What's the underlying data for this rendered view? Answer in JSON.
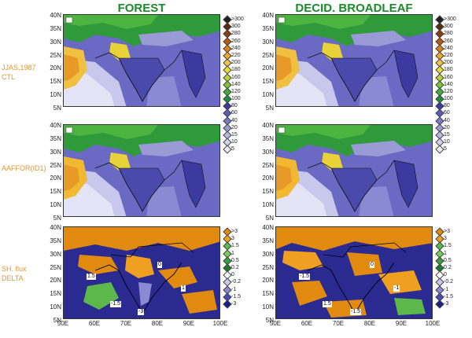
{
  "columns": [
    {
      "title": "FOREST"
    },
    {
      "title": "DECID. BROADLEAF"
    }
  ],
  "rows": [
    {
      "label_lines": [
        "JJAS,1987",
        "CTL"
      ]
    },
    {
      "label_lines": [
        "AAFFOR(ID1)"
      ]
    },
    {
      "label_lines": [
        "SH. flux",
        "DELTA"
      ]
    }
  ],
  "y_ticks": [
    "40N",
    "35N",
    "30N",
    "25N",
    "20N",
    "15N",
    "10N",
    "5N"
  ],
  "x_ticks": [
    "50E",
    "60E",
    "70E",
    "80E",
    "90E",
    "100E"
  ],
  "legend_abs": {
    "labels": [
      ">300",
      "300",
      "280",
      "260",
      "240",
      "220",
      "200",
      "180",
      "160",
      "140",
      "120",
      "100",
      "80",
      "60",
      "40",
      "20",
      "15",
      "10",
      "5"
    ],
    "colors": [
      "#202020",
      "#5a2a10",
      "#8a3d12",
      "#b85a14",
      "#d9821c",
      "#f0a830",
      "#f6c24a",
      "#e8dc3a",
      "#b8d43a",
      "#7cc43c",
      "#3fae3a",
      "#1e8e38",
      "#3a3aa0",
      "#5a5ab8",
      "#7a7ac8",
      "#9a9ad6",
      "#b8b8e2",
      "#d2d2ec",
      "#ececf6"
    ]
  },
  "legend_delta": {
    "labels": [
      ">3",
      "3",
      "1.5",
      "1",
      "0.5",
      "0.2",
      "0",
      "-0.2",
      "-1",
      "-1.5",
      "-3"
    ],
    "colors": [
      "#e08a10",
      "#f0a020",
      "#5cb84a",
      "#7ccc5a",
      "#3a9e3a",
      "#1e7a2e",
      "#ffffff",
      "#c8c8e8",
      "#8a8ad0",
      "#4a4ab8",
      "#1e1e8a"
    ]
  },
  "flux_labels_forest": [
    "1.5",
    "-1.5",
    "0",
    "1",
    "-3"
  ],
  "flux_labels_decid": [
    "-1.5",
    "1.5",
    "0",
    "-1",
    "-1.5"
  ]
}
